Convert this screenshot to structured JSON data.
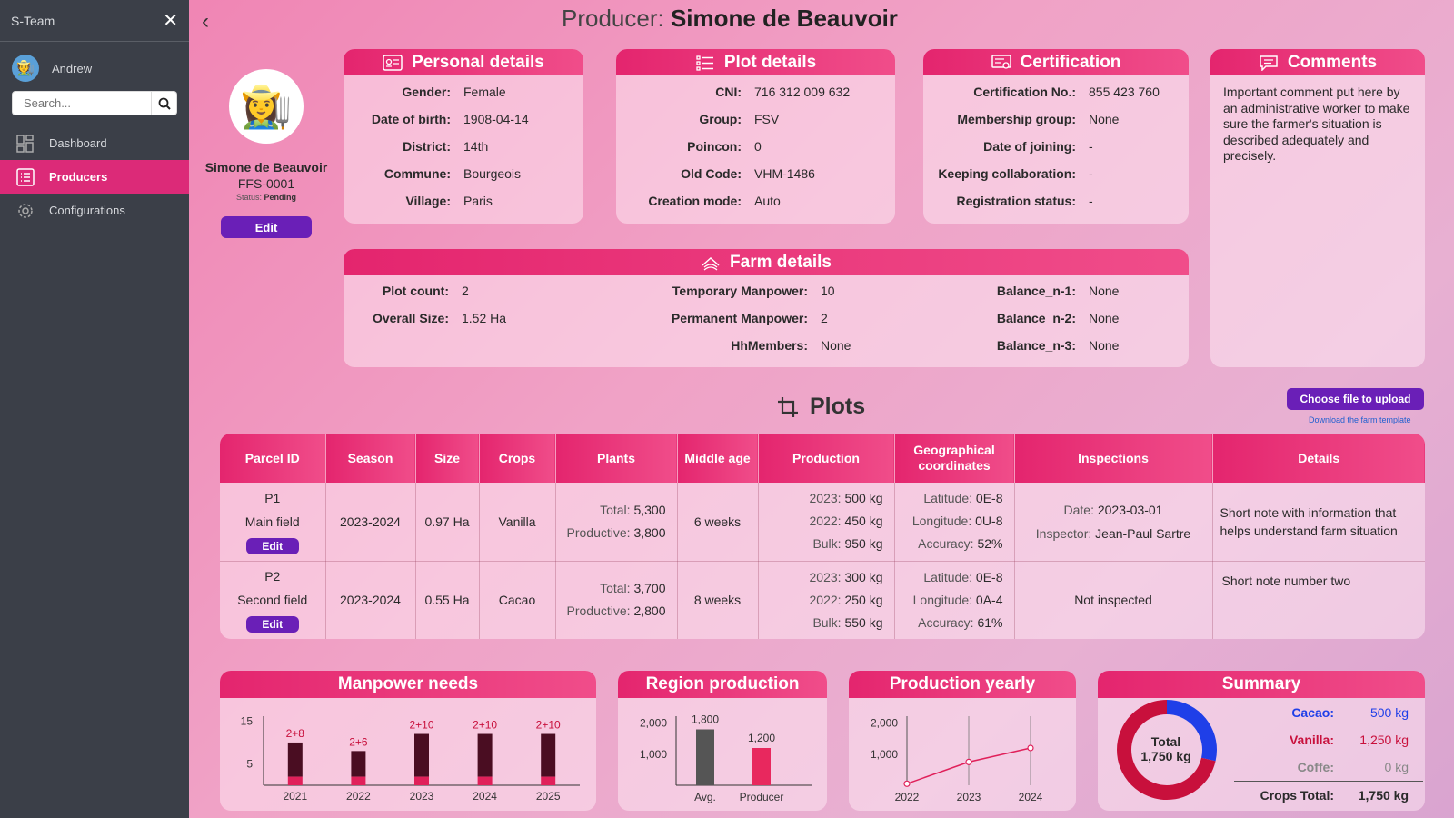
{
  "sidebar": {
    "title": "S-Team",
    "user": "Andrew",
    "search_placeholder": "Search...",
    "items": [
      {
        "label": "Dashboard"
      },
      {
        "label": "Producers"
      },
      {
        "label": "Configurations"
      }
    ]
  },
  "header": {
    "prefix": "Producer:",
    "name": "Simone de Beauvoir"
  },
  "profile": {
    "name": "Simone de Beauvoir",
    "code": "FFS-0001",
    "status_label": "Status:",
    "status": "Pending",
    "edit": "Edit"
  },
  "personal": {
    "title": "Personal details",
    "rows": [
      {
        "k": "Gender:",
        "v": "Female"
      },
      {
        "k": "Date of birth:",
        "v": "1908-04-14"
      },
      {
        "k": "District:",
        "v": "14th"
      },
      {
        "k": "Commune:",
        "v": "Bourgeois"
      },
      {
        "k": "Village:",
        "v": "Paris"
      }
    ]
  },
  "plot": {
    "title": "Plot details",
    "rows": [
      {
        "k": "CNI:",
        "v": "716 312 009 632"
      },
      {
        "k": "Group:",
        "v": "FSV"
      },
      {
        "k": "Poincon:",
        "v": "0"
      },
      {
        "k": "Old Code:",
        "v": "VHM-1486"
      },
      {
        "k": "Creation mode:",
        "v": "Auto"
      }
    ]
  },
  "cert": {
    "title": "Certification",
    "rows": [
      {
        "k": "Certification No.:",
        "v": "855 423 760"
      },
      {
        "k": "Membership group:",
        "v": "None"
      },
      {
        "k": "Date of joining:",
        "v": "-"
      },
      {
        "k": "Keeping collaboration:",
        "v": "-"
      },
      {
        "k": "Registration status:",
        "v": "-"
      }
    ]
  },
  "comments": {
    "title": "Comments",
    "text": "Important comment put here by an administrative worker to make sure the farmer's situation is described adequately and precisely."
  },
  "farm": {
    "title": "Farm details",
    "col1": [
      {
        "k": "Plot count:",
        "v": "2"
      },
      {
        "k": "Overall Size:",
        "v": "1.52 Ha"
      }
    ],
    "col2": [
      {
        "k": "Temporary Manpower:",
        "v": "10"
      },
      {
        "k": "Permanent Manpower:",
        "v": "2"
      },
      {
        "k": "HhMembers:",
        "v": "None"
      }
    ],
    "col3": [
      {
        "k": "Balance_n-1:",
        "v": "None"
      },
      {
        "k": "Balance_n-2:",
        "v": "None"
      },
      {
        "k": "Balance_n-3:",
        "v": "None"
      }
    ]
  },
  "plots": {
    "title": "Plots",
    "upload": "Choose file to upload",
    "template": "Download the farm template",
    "headers": [
      "Parcel ID",
      "Season",
      "Size",
      "Crops",
      "Plants",
      "Middle age",
      "Production",
      "Geographical coordinates",
      "Inspections",
      "Details"
    ],
    "rows": [
      {
        "id": "P1",
        "field": "Main field",
        "edit": "Edit",
        "season": "2023-2024",
        "size": "0.97 Ha",
        "crop": "Vanilla",
        "plants_total": "Total:",
        "plants_total_v": "5,300",
        "plants_prod": "Productive:",
        "plants_prod_v": "3,800",
        "age": "6 weeks",
        "p1": "2023:",
        "p1v": "500 kg",
        "p2": "2022:",
        "p2v": "450 kg",
        "p3": "Bulk:",
        "p3v": "950 kg",
        "lat": "Latitude:",
        "latv": "0E-8",
        "lon": "Longitude:",
        "lonv": "0U-8",
        "acc": "Accuracy:",
        "accv": "52%",
        "insp_date": "Date:",
        "insp_date_v": "2023-03-01",
        "insp_by": "Inspector:",
        "insp_by_v": "Jean-Paul Sartre",
        "details": "Short note with information that helps understand farm situation"
      },
      {
        "id": "P2",
        "field": "Second field",
        "edit": "Edit",
        "season": "2023-2024",
        "size": "0.55 Ha",
        "crop": "Cacao",
        "plants_total": "Total:",
        "plants_total_v": "3,700",
        "plants_prod": "Productive:",
        "plants_prod_v": "2,800",
        "age": "8 weeks",
        "p1": "2023:",
        "p1v": "300 kg",
        "p2": "2022:",
        "p2v": "250 kg",
        "p3": "Bulk:",
        "p3v": "550 kg",
        "lat": "Latitude:",
        "latv": "0E-8",
        "lon": "Longitude:",
        "lonv": "0A-4",
        "acc": "Accuracy:",
        "accv": "61%",
        "inspections": "Not inspected",
        "details": "Short note number two"
      }
    ]
  },
  "manpower": {
    "title": "Manpower needs"
  },
  "region": {
    "title": "Region production"
  },
  "yearly": {
    "title": "Production yearly"
  },
  "summary": {
    "title": "Summary",
    "donut_label": "Total",
    "donut_value": "1,750 kg",
    "rows": [
      {
        "k": "Cacao:",
        "v": "500 kg",
        "color": "#1f3fe8"
      },
      {
        "k": "Vanilla:",
        "v": "1,250 kg",
        "color": "#c8103c"
      },
      {
        "k": "Coffe:",
        "v": "0 kg",
        "color": "#888888"
      }
    ],
    "total_k": "Crops Total:",
    "total_v": "1,750 kg"
  },
  "chart_data": [
    {
      "type": "bar",
      "title": "Manpower needs",
      "categories": [
        "2021",
        "2022",
        "2023",
        "2024",
        "2025"
      ],
      "series": [
        {
          "values": [
            2,
            2,
            2,
            2,
            2
          ]
        },
        {
          "values": [
            8,
            6,
            10,
            10,
            10
          ]
        }
      ],
      "labels": [
        "2+8",
        "2+6",
        "2+10",
        "2+10",
        "2+10"
      ],
      "yticks": [
        5,
        15
      ],
      "ylim": [
        0,
        17
      ]
    },
    {
      "type": "bar",
      "title": "Region production",
      "categories": [
        "Avg.",
        "Producer"
      ],
      "values": [
        1800,
        1200
      ],
      "value_labels": [
        "1,800",
        "1,200"
      ],
      "yticks": [
        "1,000",
        "2,000"
      ],
      "ytick_vals": [
        1000,
        2000
      ],
      "ylim": [
        0,
        2400
      ],
      "colors": [
        "#555555",
        "#e8285e"
      ]
    },
    {
      "type": "line",
      "title": "Production yearly",
      "x": [
        "2022",
        "2023",
        "2024"
      ],
      "values": [
        50,
        750,
        1200
      ],
      "yticks": [
        "1,000",
        "2,000"
      ],
      "ytick_vals": [
        1000,
        2000
      ],
      "ylim": [
        0,
        2400
      ]
    },
    {
      "type": "pie",
      "title": "Summary",
      "categories": [
        "Cacao",
        "Vanilla"
      ],
      "values": [
        500,
        1250
      ],
      "colors": [
        "#1f3fe8",
        "#c8103c"
      ]
    }
  ]
}
